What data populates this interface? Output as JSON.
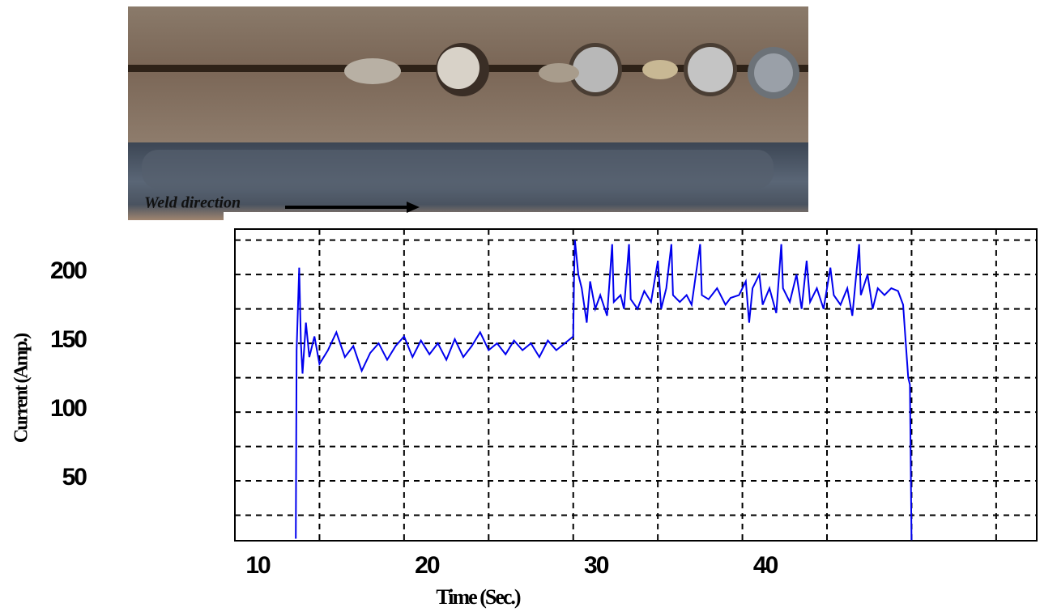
{
  "chart_data": {
    "type": "line",
    "annotation": "Weld direction",
    "xlabel": "Time (Sec.)",
    "ylabel": "Current (Amp.)",
    "color": "#0000ee",
    "grid": true,
    "xlim": [
      10,
      57.4
    ],
    "ylim": [
      6.5,
      233
    ],
    "xticks": [
      10,
      20,
      30,
      40
    ],
    "yticks": [
      50,
      100,
      150,
      200
    ],
    "xgrid": [
      15,
      20,
      25,
      30,
      35,
      40,
      45,
      50,
      55
    ],
    "ygrid": [
      25,
      50,
      75,
      100,
      125,
      150,
      175,
      200,
      225
    ],
    "x": [
      13.6,
      13.65,
      13.8,
      13.9,
      14.0,
      14.2,
      14.4,
      14.7,
      15.0,
      15.5,
      16.0,
      16.5,
      17.0,
      17.5,
      18.0,
      18.5,
      19.0,
      19.5,
      20.0,
      20.5,
      21.0,
      21.5,
      22.0,
      22.5,
      23.0,
      23.5,
      24.0,
      24.5,
      25.0,
      25.5,
      26.0,
      26.5,
      27.0,
      27.5,
      28.0,
      28.5,
      29.0,
      29.5,
      30.0,
      30.05,
      30.1,
      30.3,
      30.5,
      30.8,
      31.0,
      31.3,
      31.6,
      32.0,
      32.3,
      32.4,
      32.8,
      33.0,
      33.3,
      33.4,
      33.8,
      34.2,
      34.6,
      35.0,
      35.2,
      35.5,
      35.8,
      35.9,
      36.3,
      36.7,
      37.0,
      37.5,
      37.6,
      38.0,
      38.5,
      39.0,
      39.3,
      39.8,
      40.2,
      40.4,
      40.6,
      41.0,
      41.2,
      41.6,
      42.0,
      42.3,
      42.4,
      42.8,
      43.2,
      43.5,
      43.8,
      44.0,
      44.4,
      44.8,
      45.2,
      45.4,
      45.8,
      46.2,
      46.5,
      46.9,
      47.0,
      47.4,
      47.7,
      48.0,
      48.4,
      48.8,
      49.2,
      49.5,
      49.6,
      49.8,
      49.9,
      50.0
    ],
    "values": [
      8,
      145,
      205,
      150,
      128,
      165,
      140,
      155,
      135,
      145,
      158,
      140,
      148,
      130,
      143,
      150,
      138,
      148,
      155,
      140,
      152,
      142,
      150,
      138,
      153,
      140,
      148,
      158,
      145,
      150,
      142,
      152,
      145,
      150,
      140,
      152,
      145,
      150,
      155,
      200,
      225,
      200,
      190,
      165,
      195,
      175,
      185,
      170,
      222,
      180,
      185,
      175,
      222,
      182,
      175,
      188,
      180,
      210,
      175,
      190,
      222,
      185,
      180,
      185,
      178,
      222,
      185,
      182,
      190,
      178,
      183,
      185,
      195,
      165,
      190,
      200,
      178,
      190,
      172,
      222,
      190,
      180,
      200,
      175,
      210,
      180,
      190,
      175,
      205,
      185,
      178,
      190,
      170,
      222,
      185,
      200,
      175,
      190,
      185,
      190,
      188,
      178,
      160,
      125,
      120,
      7
    ]
  }
}
